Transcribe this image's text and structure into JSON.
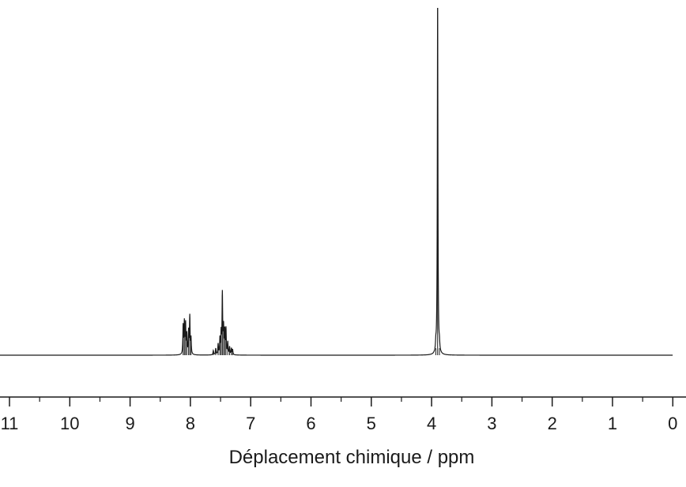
{
  "chart_data": {
    "type": "line",
    "title": "",
    "xlabel": "Déplacement chimique / ppm",
    "ylabel": "",
    "xlim": [
      11.2,
      0
    ],
    "x_reversed": true,
    "ylim": [
      -0.02,
      1.0
    ],
    "major_ticks": [
      11,
      10,
      9,
      8,
      7,
      6,
      5,
      4,
      3,
      2,
      1,
      0
    ],
    "minor_ticks": [
      10.5,
      9.5,
      8.5,
      7.5,
      6.5,
      5.5,
      4.5,
      3.5,
      2.5,
      1.5,
      0.5
    ],
    "tick_labels": [
      "11",
      "10",
      "9",
      "8",
      "7",
      "6",
      "5",
      "4",
      "3",
      "2",
      "1",
      "0"
    ],
    "grid": false,
    "line_color": "#1a1a1a",
    "peaks": [
      {
        "ppm": 8.12,
        "height": 0.082
      },
      {
        "ppm": 8.1,
        "height": 0.09
      },
      {
        "ppm": 8.08,
        "height": 0.085
      },
      {
        "ppm": 8.06,
        "height": 0.055
      },
      {
        "ppm": 8.03,
        "height": 0.065
      },
      {
        "ppm": 8.01,
        "height": 0.108
      },
      {
        "ppm": 7.99,
        "height": 0.045
      },
      {
        "ppm": 7.62,
        "height": 0.012
      },
      {
        "ppm": 7.58,
        "height": 0.018
      },
      {
        "ppm": 7.54,
        "height": 0.03
      },
      {
        "ppm": 7.51,
        "height": 0.045
      },
      {
        "ppm": 7.49,
        "height": 0.06
      },
      {
        "ppm": 7.47,
        "height": 0.173
      },
      {
        "ppm": 7.45,
        "height": 0.075
      },
      {
        "ppm": 7.43,
        "height": 0.065
      },
      {
        "ppm": 7.41,
        "height": 0.072
      },
      {
        "ppm": 7.38,
        "height": 0.035
      },
      {
        "ppm": 7.35,
        "height": 0.022
      },
      {
        "ppm": 7.32,
        "height": 0.018
      },
      {
        "ppm": 7.3,
        "height": 0.015
      },
      {
        "ppm": 3.93,
        "height": 0.02
      },
      {
        "ppm": 3.9,
        "height": 1.0
      },
      {
        "ppm": 3.87,
        "height": 0.02
      }
    ]
  }
}
